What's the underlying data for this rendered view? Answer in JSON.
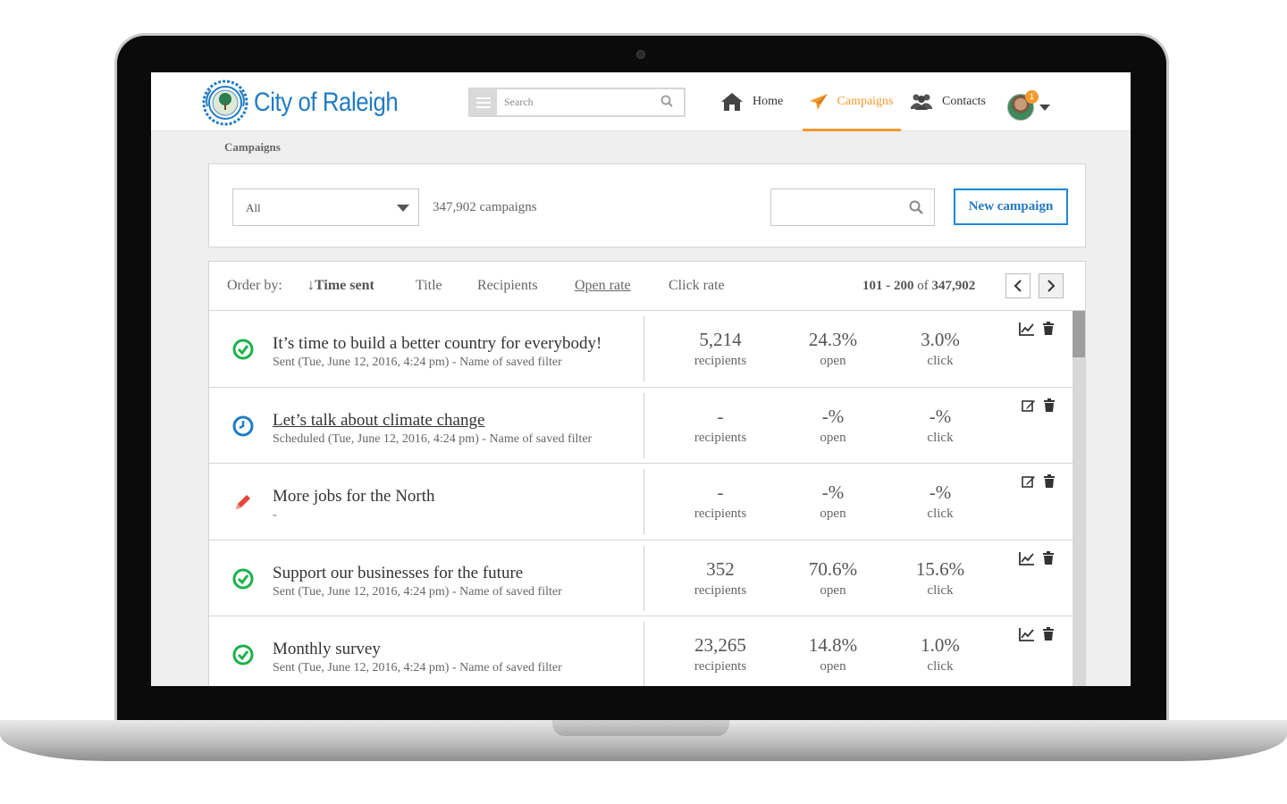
{
  "brand": {
    "name": "City of Raleigh"
  },
  "topbar": {
    "search_placeholder": "Search",
    "nav": [
      {
        "label": "Home",
        "icon": "home-icon"
      },
      {
        "label": "Campaigns",
        "icon": "paper-plane-icon",
        "active": true
      },
      {
        "label": "Contacts",
        "icon": "users-icon"
      }
    ],
    "notification_count": "1"
  },
  "breadcrumb": "Campaigns",
  "filter": {
    "selected": "All",
    "count_text": "347,902 campaigns",
    "new_campaign_label": "New campaign"
  },
  "list": {
    "order_label": "Order by:",
    "order_options": [
      "↓Time sent",
      "Title",
      "Recipients",
      "Open rate",
      "Click rate"
    ],
    "range_prefix": "101 - 200",
    "range_of": "of",
    "range_total": "347,902",
    "rows": [
      {
        "status": "sent",
        "title": "It’s time to build a better country for everybody!",
        "subtitle": "Sent (Tue, June 12, 2016, 4:24 pm) - Name of saved filter",
        "recipients": "5,214",
        "open": "24.3%",
        "click": "3.0%",
        "recipients_label": "recipients",
        "open_label": "open",
        "click_label": "click",
        "action": "chart"
      },
      {
        "status": "scheduled",
        "title": "Let’s talk about climate change",
        "subtitle": "Scheduled (Tue, June 12, 2016, 4:24 pm) - Name of saved filter",
        "recipients": "-",
        "open": "-%",
        "click": "-%",
        "recipients_label": "recipients",
        "open_label": "open",
        "click_label": "click",
        "action": "edit"
      },
      {
        "status": "draft",
        "title": "More jobs for the North",
        "subtitle": "-",
        "recipients": "-",
        "open": "-%",
        "click": "-%",
        "recipients_label": "recipients",
        "open_label": "open",
        "click_label": "click",
        "action": "edit"
      },
      {
        "status": "sent",
        "title": "Support our businesses for the future",
        "subtitle": "Sent (Tue, June 12, 2016, 4:24 pm) - Name of saved filter",
        "recipients": "352",
        "open": "70.6%",
        "click": "15.6%",
        "recipients_label": "recipients",
        "open_label": "open",
        "click_label": "click",
        "action": "chart"
      },
      {
        "status": "sent",
        "title": "Monthly survey",
        "subtitle": "Sent (Tue, June 12, 2016, 4:24 pm) - Name of saved filter",
        "recipients": "23,265",
        "open": "14.8%",
        "click": "1.0%",
        "recipients_label": "recipients",
        "open_label": "open",
        "click_label": "click",
        "action": "chart"
      }
    ]
  },
  "colors": {
    "brand_blue": "#1f7bc4",
    "accent_orange": "#f39a2e",
    "sent_green": "#1ab24a",
    "scheduled_blue": "#1f7bc4",
    "draft_red": "#e8453c"
  }
}
